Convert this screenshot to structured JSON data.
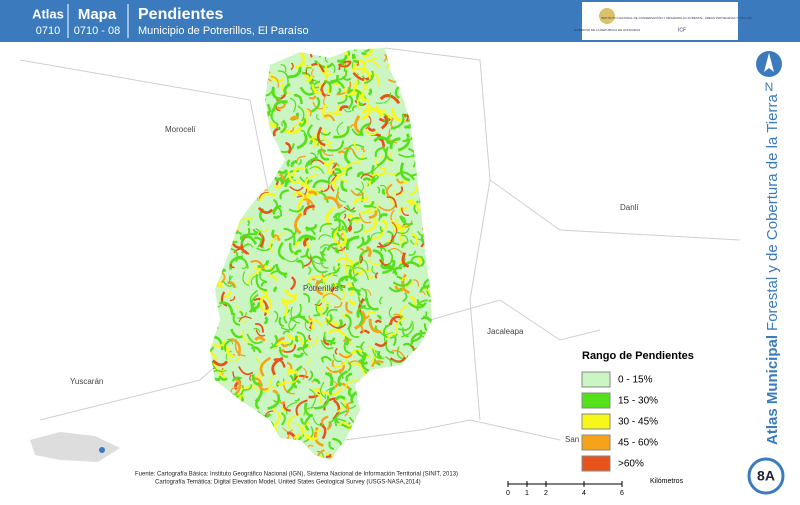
{
  "header": {
    "atlas_label": "Atlas",
    "atlas_code": "0710",
    "map_label": "Mapa",
    "map_code": "0710 - 08",
    "title": "Pendientes",
    "subtitle": "Municipio de Potrerillos, El Paraíso",
    "logo_left": "GOBIERNO DE LA REPÚBLICA DE HONDURAS",
    "logo_right": "INSTITUTO NACIONAL DE CONSERVACIÓN Y DESARROLLO FORESTAL, ÁREAS PROTEGIDAS Y VIDA SILVESTRE",
    "logo_right_short": "ICF"
  },
  "places": [
    "Morocelí",
    "Potrerillos",
    "Danlí",
    "Jacaleapa",
    "Yuscarán",
    "San Matías"
  ],
  "legend": {
    "title": "Rango de Pendientes",
    "items": [
      {
        "label": "0 - 15%",
        "color": "#ccf5c4"
      },
      {
        "label": "15 - 30%",
        "color": "#55e01c"
      },
      {
        "label": "30 - 45%",
        "color": "#f7f71a"
      },
      {
        "label": "45 - 60%",
        "color": "#f5a31a"
      },
      {
        "label": ">60%",
        "color": "#e8531c"
      }
    ]
  },
  "scale": {
    "ticks": [
      0,
      1,
      2,
      4,
      6
    ],
    "unit": "Kilómetros"
  },
  "sources": [
    "Fuente: Cartografía Básica: Instituto Geográfico Nacional (IGN), Sistema Nacional de Información Territorial (SINIT, 2013)",
    "Cartografía Temática: Digital Elevation Model, United States Geological Survey (USGS-NASA,2014)"
  ],
  "sidebar": {
    "north": "N",
    "title_bold": "Atlas Municipal",
    "title_rest": "Forestal y de Cobertura de la Tierra",
    "page": "8A"
  }
}
